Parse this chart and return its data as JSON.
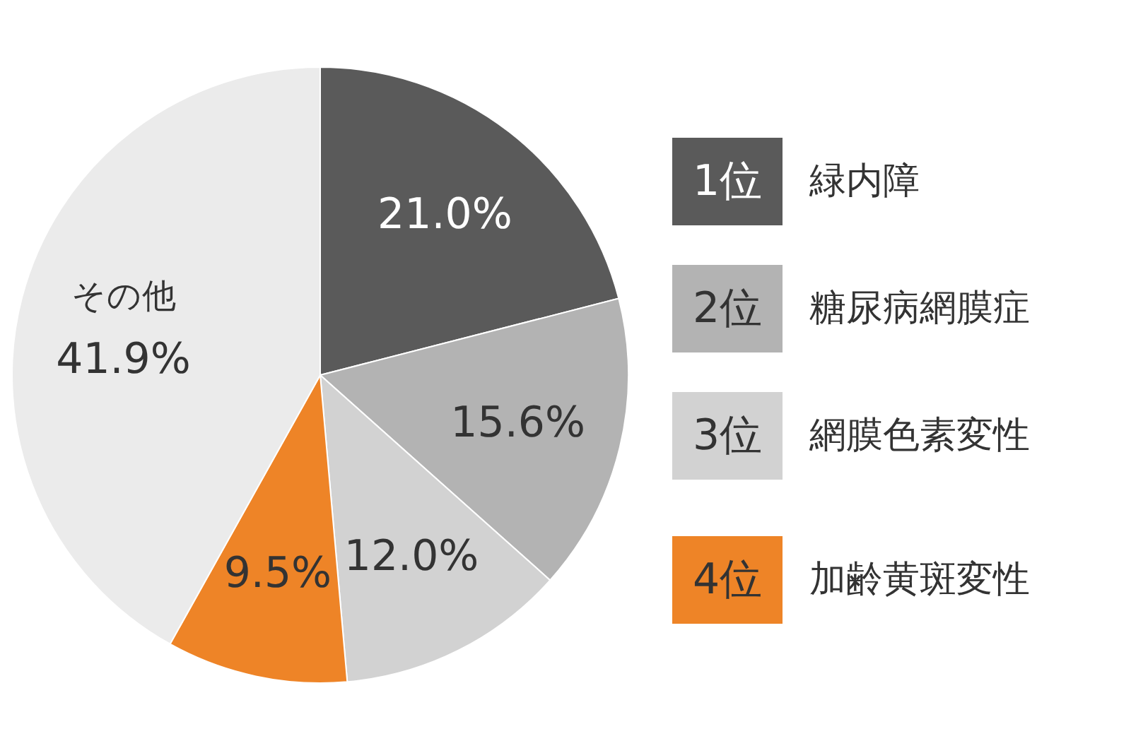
{
  "chart_data": {
    "type": "pie",
    "categories": [
      "緑内障",
      "糖尿病網膜症",
      "網膜色素変性",
      "加齢黄斑変性",
      "その他"
    ],
    "values": [
      21.0,
      15.6,
      12.0,
      9.5,
      41.9
    ],
    "value_labels": [
      "21.0%",
      "15.6%",
      "12.0%",
      "9.5%",
      "41.9%"
    ],
    "colors": [
      "#5a5a5a",
      "#b3b3b3",
      "#d2d2d2",
      "#ee8427",
      "#ebebeb"
    ],
    "annotations": [
      "1位",
      "2位",
      "3位",
      "4位"
    ],
    "legend": "right"
  }
}
